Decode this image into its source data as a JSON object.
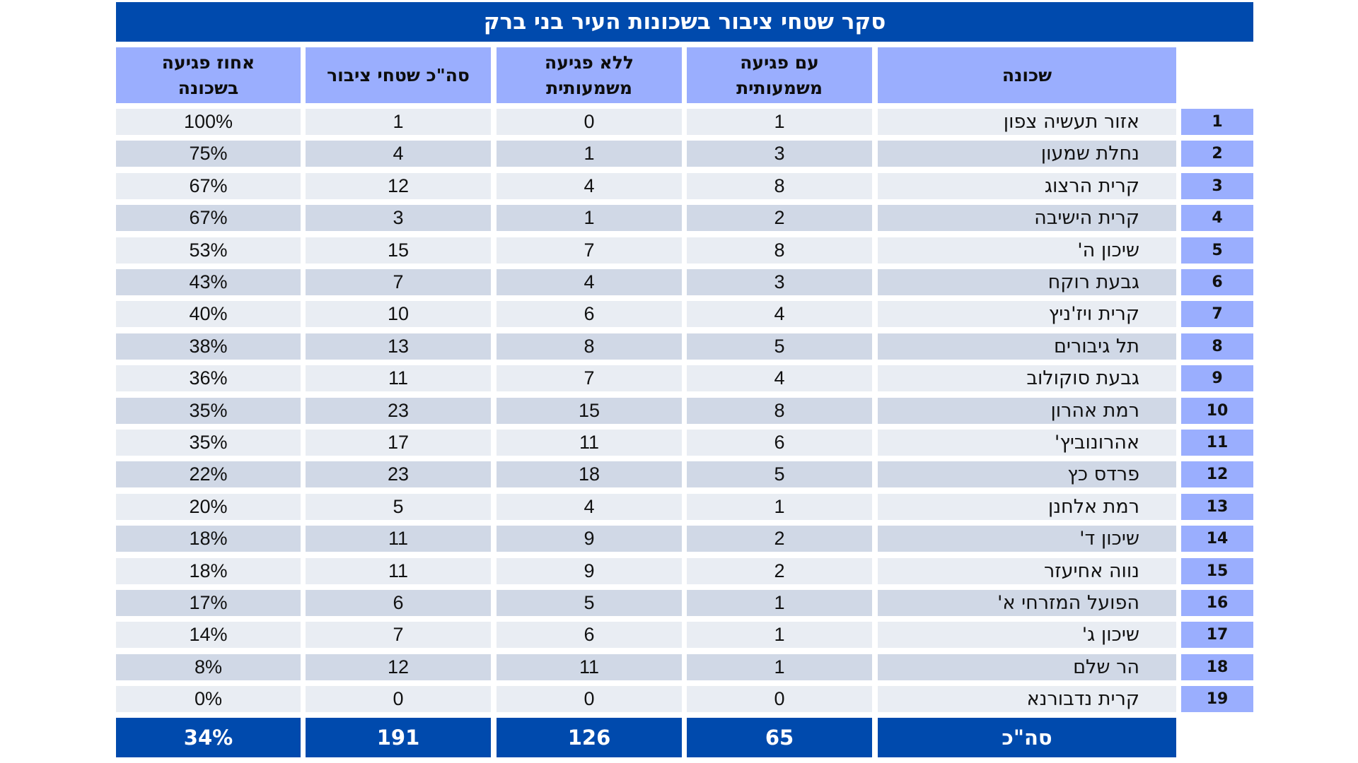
{
  "title": "סקר שטחי ציבור בשכונות העיר בני ברק",
  "colors": {
    "title_bg": "#004AAD",
    "header_bg": "#9AAEFE",
    "row_light": "#E9EDF3",
    "row_dark": "#D0D8E6",
    "total_bg": "#004AAD"
  },
  "headers": {
    "neighborhood": "שכונה",
    "with_impact": "עם פגיעה\nמשמעותית",
    "without_impact": "ללא פגיעה\nמשמעותית",
    "total_areas": "סה\"כ שטחי ציבור",
    "impact_pct": "אחוז פגיעה\nבשכונה"
  },
  "rows": [
    {
      "num": "1",
      "name": "אזור תעשיה צפון",
      "with": "1",
      "without": "0",
      "total": "1",
      "pct": "100%"
    },
    {
      "num": "2",
      "name": "נחלת שמעון",
      "with": "3",
      "without": "1",
      "total": "4",
      "pct": "75%"
    },
    {
      "num": "3",
      "name": "קרית הרצוג",
      "with": "8",
      "without": "4",
      "total": "12",
      "pct": "67%"
    },
    {
      "num": "4",
      "name": "קרית הישיבה",
      "with": "2",
      "without": "1",
      "total": "3",
      "pct": "67%"
    },
    {
      "num": "5",
      "name": "שיכון ה'",
      "with": "8",
      "without": "7",
      "total": "15",
      "pct": "53%"
    },
    {
      "num": "6",
      "name": "גבעת רוקח",
      "with": "3",
      "without": "4",
      "total": "7",
      "pct": "43%"
    },
    {
      "num": "7",
      "name": "קרית ויז'ניץ",
      "with": "4",
      "without": "6",
      "total": "10",
      "pct": "40%"
    },
    {
      "num": "8",
      "name": "תל גיבורים",
      "with": "5",
      "without": "8",
      "total": "13",
      "pct": "38%"
    },
    {
      "num": "9",
      "name": "גבעת סוקולוב",
      "with": "4",
      "without": "7",
      "total": "11",
      "pct": "36%"
    },
    {
      "num": "10",
      "name": "רמת אהרון",
      "with": "8",
      "without": "15",
      "total": "23",
      "pct": "35%"
    },
    {
      "num": "11",
      "name": "אהרונוביץ'",
      "with": "6",
      "without": "11",
      "total": "17",
      "pct": "35%"
    },
    {
      "num": "12",
      "name": "פרדס כץ",
      "with": "5",
      "without": "18",
      "total": "23",
      "pct": "22%"
    },
    {
      "num": "13",
      "name": "רמת אלחנן",
      "with": "1",
      "without": "4",
      "total": "5",
      "pct": "20%"
    },
    {
      "num": "14",
      "name": "שיכון ד'",
      "with": "2",
      "without": "9",
      "total": "11",
      "pct": "18%"
    },
    {
      "num": "15",
      "name": "נווה אחיעזר",
      "with": "2",
      "without": "9",
      "total": "11",
      "pct": "18%"
    },
    {
      "num": "16",
      "name": "הפועל המזרחי א'",
      "with": "1",
      "without": "5",
      "total": "6",
      "pct": "17%"
    },
    {
      "num": "17",
      "name": "שיכון ג'",
      "with": "1",
      "without": "6",
      "total": "7",
      "pct": "14%"
    },
    {
      "num": "18",
      "name": "הר שלם",
      "with": "1",
      "without": "11",
      "total": "12",
      "pct": "8%"
    },
    {
      "num": "19",
      "name": "קרית נדבורנא",
      "with": "0",
      "without": "0",
      "total": "0",
      "pct": "0%"
    }
  ],
  "totals": {
    "label": "סה\"כ",
    "with": "65",
    "without": "126",
    "total": "191",
    "pct": "34%"
  }
}
